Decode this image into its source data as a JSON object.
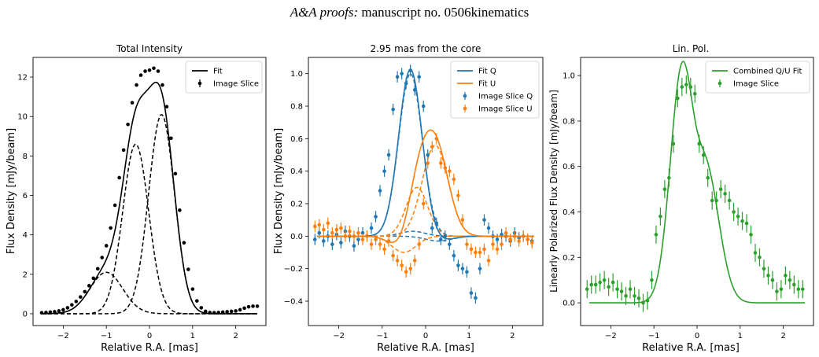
{
  "header": {
    "journal": "A&A proofs:",
    "manuscript": "manuscript no. 0506kinematics"
  },
  "chart_data": [
    {
      "type": "line",
      "title": "Total Intensity",
      "xlabel": "Relative R.A. [mas]",
      "ylabel": "Flux Density [mJy/beam]",
      "xlim": [
        -2.7,
        2.7
      ],
      "ylim": [
        -0.6,
        13.0
      ],
      "xticks": [
        -2,
        -1,
        0,
        1,
        2
      ],
      "yticks": [
        0,
        2,
        4,
        6,
        8,
        10,
        12
      ],
      "legend": {
        "position": "top-right",
        "entries": [
          "Fit",
          "Image Slice"
        ]
      },
      "color": "#000000",
      "components": [
        {
          "amplitude": 2.1,
          "center": -1.0,
          "sigma": 0.38
        },
        {
          "amplitude": 8.6,
          "center": -0.32,
          "sigma": 0.3
        },
        {
          "amplitude": 10.1,
          "center": 0.28,
          "sigma": 0.3
        }
      ],
      "points": {
        "x": [
          -2.5,
          -2.4,
          -2.3,
          -2.2,
          -2.1,
          -2.0,
          -1.9,
          -1.8,
          -1.7,
          -1.6,
          -1.5,
          -1.4,
          -1.3,
          -1.2,
          -1.1,
          -1.0,
          -0.9,
          -0.8,
          -0.7,
          -0.6,
          -0.5,
          -0.4,
          -0.3,
          -0.2,
          -0.1,
          0.0,
          0.1,
          0.2,
          0.3,
          0.4,
          0.5,
          0.6,
          0.7,
          0.8,
          0.9,
          1.0,
          1.1,
          1.2,
          1.3,
          1.4,
          1.5,
          1.6,
          1.7,
          1.8,
          1.9,
          2.0,
          2.1,
          2.2,
          2.3,
          2.4,
          2.5
        ],
        "y": [
          0.05,
          0.06,
          0.08,
          0.1,
          0.14,
          0.2,
          0.3,
          0.45,
          0.62,
          0.85,
          1.12,
          1.42,
          1.8,
          2.28,
          2.85,
          3.45,
          4.35,
          5.5,
          6.9,
          8.3,
          9.6,
          10.7,
          11.6,
          12.1,
          12.3,
          12.35,
          12.45,
          12.3,
          11.6,
          10.5,
          8.9,
          7.1,
          5.25,
          3.6,
          2.25,
          1.25,
          0.65,
          0.3,
          0.12,
          0.06,
          0.05,
          0.06,
          0.08,
          0.1,
          0.12,
          0.14,
          0.2,
          0.28,
          0.35,
          0.38,
          0.38
        ]
      }
    },
    {
      "type": "line",
      "title": "2.95 mas from the core",
      "xlabel": "Relative R.A. [mas]",
      "ylabel": "Flux Density [mJy/beam]",
      "xlim": [
        -2.7,
        2.7
      ],
      "ylim": [
        -0.55,
        1.1
      ],
      "xticks": [
        -2,
        -1,
        0,
        1,
        2
      ],
      "yticks": [
        -0.4,
        -0.2,
        0.0,
        0.2,
        0.4,
        0.6,
        0.8,
        1.0
      ],
      "legend": {
        "position": "top-right",
        "entries": [
          "Fit Q",
          "Fit U",
          "Image Slice Q",
          "Image Slice U"
        ]
      },
      "colors": {
        "Q": "#1f77b4",
        "U": "#ff7f0e"
      },
      "components_Q": [
        {
          "amplitude": 1.0,
          "center": -0.35,
          "sigma": 0.27
        },
        {
          "amplitude": 0.03,
          "center": -0.3,
          "sigma": 0.28
        },
        {
          "amplitude": -0.03,
          "center": 0.3,
          "sigma": 0.3
        }
      ],
      "components_U": [
        {
          "amplitude": 0.56,
          "center": 0.22,
          "sigma": 0.3
        },
        {
          "amplitude": 0.3,
          "center": -0.2,
          "sigma": 0.25
        },
        {
          "amplitude": -0.1,
          "center": -0.5,
          "sigma": 0.28
        }
      ],
      "points_Q": {
        "x": [
          -2.55,
          -2.45,
          -2.35,
          -2.25,
          -2.15,
          -2.05,
          -1.95,
          -1.85,
          -1.75,
          -1.65,
          -1.55,
          -1.45,
          -1.35,
          -1.25,
          -1.15,
          -1.05,
          -0.95,
          -0.85,
          -0.75,
          -0.65,
          -0.55,
          -0.45,
          -0.35,
          -0.25,
          -0.15,
          -0.05,
          0.05,
          0.15,
          0.25,
          0.35,
          0.45,
          0.55,
          0.65,
          0.75,
          0.85,
          0.95,
          1.05,
          1.15,
          1.25,
          1.35,
          1.45,
          1.55,
          1.65,
          1.75,
          1.85,
          1.95,
          2.05,
          2.15,
          2.25,
          2.35,
          2.45
        ],
        "y": [
          -0.02,
          0.02,
          -0.03,
          0.0,
          -0.05,
          0.01,
          -0.04,
          0.03,
          0.0,
          -0.06,
          -0.02,
          0.02,
          0.0,
          0.05,
          0.12,
          0.28,
          0.4,
          0.5,
          0.78,
          0.98,
          1.0,
          0.94,
          1.02,
          0.9,
          0.98,
          0.8,
          0.5,
          0.05,
          0.08,
          -0.02,
          0.0,
          -0.05,
          -0.12,
          -0.18,
          -0.2,
          -0.22,
          -0.35,
          -0.38,
          -0.2,
          0.1,
          0.05,
          0.0,
          -0.02,
          0.01,
          0.0,
          -0.03,
          0.02,
          -0.01,
          0.0,
          -0.02,
          -0.03
        ]
      },
      "points_U": {
        "x": [
          -2.55,
          -2.45,
          -2.35,
          -2.25,
          -2.15,
          -2.05,
          -1.95,
          -1.85,
          -1.75,
          -1.65,
          -1.55,
          -1.45,
          -1.35,
          -1.25,
          -1.15,
          -1.05,
          -0.95,
          -0.85,
          -0.75,
          -0.65,
          -0.55,
          -0.45,
          -0.35,
          -0.25,
          -0.15,
          -0.05,
          0.05,
          0.15,
          0.25,
          0.35,
          0.45,
          0.55,
          0.65,
          0.75,
          0.85,
          0.95,
          1.05,
          1.15,
          1.25,
          1.35,
          1.45,
          1.55,
          1.65,
          1.75,
          1.85,
          1.95,
          2.05,
          2.15,
          2.25,
          2.35,
          2.45
        ],
        "y": [
          0.06,
          0.07,
          0.04,
          0.08,
          0.02,
          0.04,
          0.05,
          0.0,
          0.03,
          0.0,
          0.02,
          -0.02,
          0.0,
          -0.05,
          -0.02,
          -0.05,
          -0.08,
          -0.03,
          -0.12,
          -0.15,
          -0.18,
          -0.22,
          -0.2,
          -0.15,
          -0.05,
          0.2,
          0.45,
          0.55,
          0.6,
          0.45,
          0.42,
          0.4,
          0.35,
          0.25,
          0.1,
          -0.05,
          -0.08,
          -0.1,
          -0.1,
          -0.08,
          -0.15,
          -0.05,
          -0.08,
          -0.05,
          0.02,
          -0.02,
          0.0,
          -0.03,
          0.0,
          -0.02,
          -0.04
        ]
      }
    },
    {
      "type": "line",
      "title": "Lin. Pol.",
      "xlabel": "Relative R.A. [mas]",
      "ylabel": "Linearly Polarized Flux Density [mJy/beam]",
      "xlim": [
        -2.7,
        2.7
      ],
      "ylim": [
        -0.1,
        1.08
      ],
      "xticks": [
        -2,
        -1,
        0,
        1,
        2
      ],
      "yticks": [
        0.0,
        0.2,
        0.4,
        0.6,
        0.8,
        1.0
      ],
      "legend": {
        "position": "top-right",
        "entries": [
          "Combined Q/U Fit",
          "Image Slice"
        ]
      },
      "color": "#2ca02c",
      "points": {
        "x": [
          -2.55,
          -2.45,
          -2.35,
          -2.25,
          -2.15,
          -2.05,
          -1.95,
          -1.85,
          -1.75,
          -1.65,
          -1.55,
          -1.45,
          -1.35,
          -1.25,
          -1.15,
          -1.05,
          -0.95,
          -0.85,
          -0.75,
          -0.65,
          -0.55,
          -0.45,
          -0.35,
          -0.25,
          -0.15,
          -0.05,
          0.05,
          0.15,
          0.25,
          0.35,
          0.45,
          0.55,
          0.65,
          0.75,
          0.85,
          0.95,
          1.05,
          1.15,
          1.25,
          1.35,
          1.45,
          1.55,
          1.65,
          1.75,
          1.85,
          1.95,
          2.05,
          2.15,
          2.25,
          2.35,
          2.45
        ],
        "y": [
          0.06,
          0.08,
          0.08,
          0.09,
          0.1,
          0.07,
          0.09,
          0.06,
          0.05,
          0.03,
          0.06,
          0.03,
          0.02,
          0.0,
          0.01,
          0.1,
          0.3,
          0.38,
          0.5,
          0.55,
          0.7,
          0.9,
          0.95,
          0.96,
          0.95,
          0.92,
          0.7,
          0.65,
          0.55,
          0.45,
          0.45,
          0.5,
          0.48,
          0.45,
          0.4,
          0.38,
          0.36,
          0.35,
          0.3,
          0.22,
          0.2,
          0.15,
          0.12,
          0.1,
          0.05,
          0.06,
          0.12,
          0.1,
          0.08,
          0.06,
          0.06
        ]
      }
    }
  ]
}
